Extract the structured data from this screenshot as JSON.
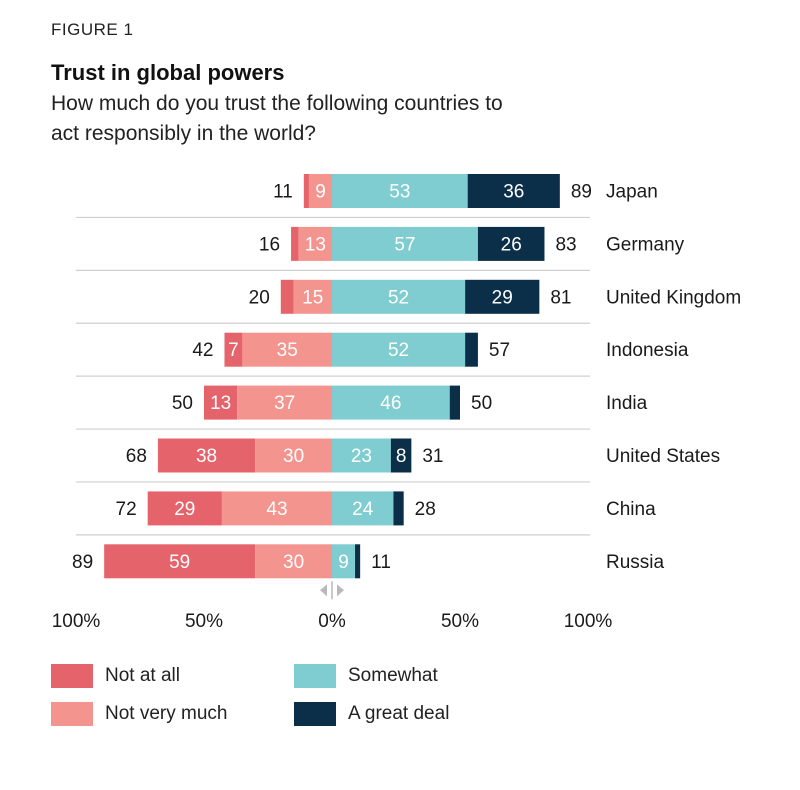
{
  "header": {
    "figure_label": "FIGURE 1",
    "title": "Trust in global powers",
    "subtitle": "How much do you trust the following countries to act responsibly in the world?"
  },
  "colors": {
    "not_at_all": "#e5646c",
    "not_very_much": "#f4948f",
    "somewhat": "#7fcdd0",
    "great_deal": "#0c2f49"
  },
  "chart_data": {
    "type": "bar",
    "subtype": "diverging-stacked-horizontal",
    "categories": [
      "Japan",
      "Germany",
      "United Kingdom",
      "Indonesia",
      "India",
      "United States",
      "China",
      "Russia"
    ],
    "series": [
      {
        "name": "Not at all",
        "values": [
          2,
          3,
          5,
          7,
          13,
          38,
          29,
          59
        ]
      },
      {
        "name": "Not very much",
        "values": [
          9,
          13,
          15,
          35,
          37,
          30,
          43,
          30
        ]
      },
      {
        "name": "Somewhat",
        "values": [
          53,
          57,
          52,
          52,
          46,
          23,
          24,
          9
        ]
      },
      {
        "name": "A great deal",
        "values": [
          36,
          26,
          29,
          5,
          4,
          8,
          4,
          2
        ]
      }
    ],
    "shown_segment_labels": {
      "Not at all": [
        null,
        null,
        null,
        "7",
        "13",
        "38",
        "29",
        "59"
      ],
      "Not very much": [
        "9",
        "13",
        "15",
        "35",
        "37",
        "30",
        "43",
        "30"
      ],
      "Somewhat": [
        "53",
        "57",
        "52",
        "52",
        "46",
        "23",
        "24",
        "9"
      ],
      "A great deal": [
        "36",
        "26",
        "29",
        null,
        null,
        "8",
        null,
        null
      ]
    },
    "distrust_totals": [
      11,
      16,
      20,
      42,
      50,
      68,
      72,
      89
    ],
    "trust_totals": [
      89,
      83,
      81,
      57,
      50,
      31,
      28,
      11
    ],
    "xlim": [
      -100,
      100
    ],
    "x_ticks": [
      "100%",
      "50%",
      "0%",
      "50%",
      "100%"
    ],
    "xlabel": "",
    "ylabel": "",
    "legend": {
      "placement": "bottom",
      "entries": [
        "Not at all",
        "Not very much",
        "Somewhat",
        "A great deal"
      ]
    },
    "grid": false
  }
}
